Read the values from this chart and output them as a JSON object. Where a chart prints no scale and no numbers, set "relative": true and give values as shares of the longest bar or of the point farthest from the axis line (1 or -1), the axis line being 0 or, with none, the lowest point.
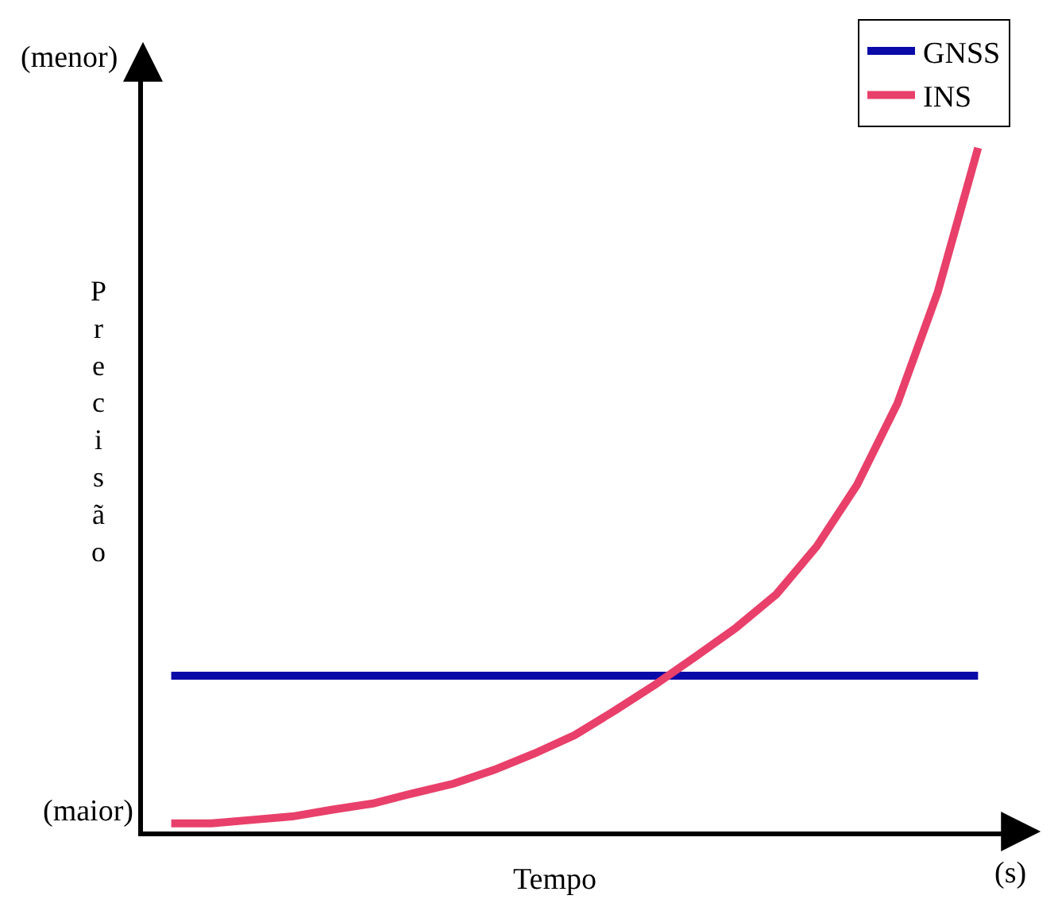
{
  "chart_data": {
    "type": "line",
    "relative": true,
    "xlabel": "Tempo",
    "ylabel": "Precisão",
    "annotations": [
      "(menor)",
      "(maior)",
      "(s)"
    ],
    "legend": "top right",
    "categories": [
      null,
      null,
      null,
      null,
      null,
      null,
      null,
      null,
      null,
      null,
      null,
      null,
      null,
      null,
      null,
      null,
      null,
      null,
      null,
      null,
      null
    ],
    "series": [
      {
        "name": "GNSS",
        "color": "#0a0aa8",
        "values": [
          0.228,
          0.228,
          0.228,
          0.228,
          0.228,
          0.228,
          0.228,
          0.228,
          0.228,
          0.228,
          0.228,
          0.228,
          0.228,
          0.228,
          0.228,
          0.228,
          0.228,
          0.228,
          0.228,
          0.228,
          0.228
        ]
      },
      {
        "name": "INS",
        "color": "#e8406a",
        "values": [
          0.012,
          0.012,
          0.017,
          0.022,
          0.032,
          0.041,
          0.056,
          0.07,
          0.09,
          0.114,
          0.141,
          0.177,
          0.215,
          0.256,
          0.298,
          0.347,
          0.417,
          0.507,
          0.626,
          0.789,
          1.0
        ]
      }
    ]
  }
}
